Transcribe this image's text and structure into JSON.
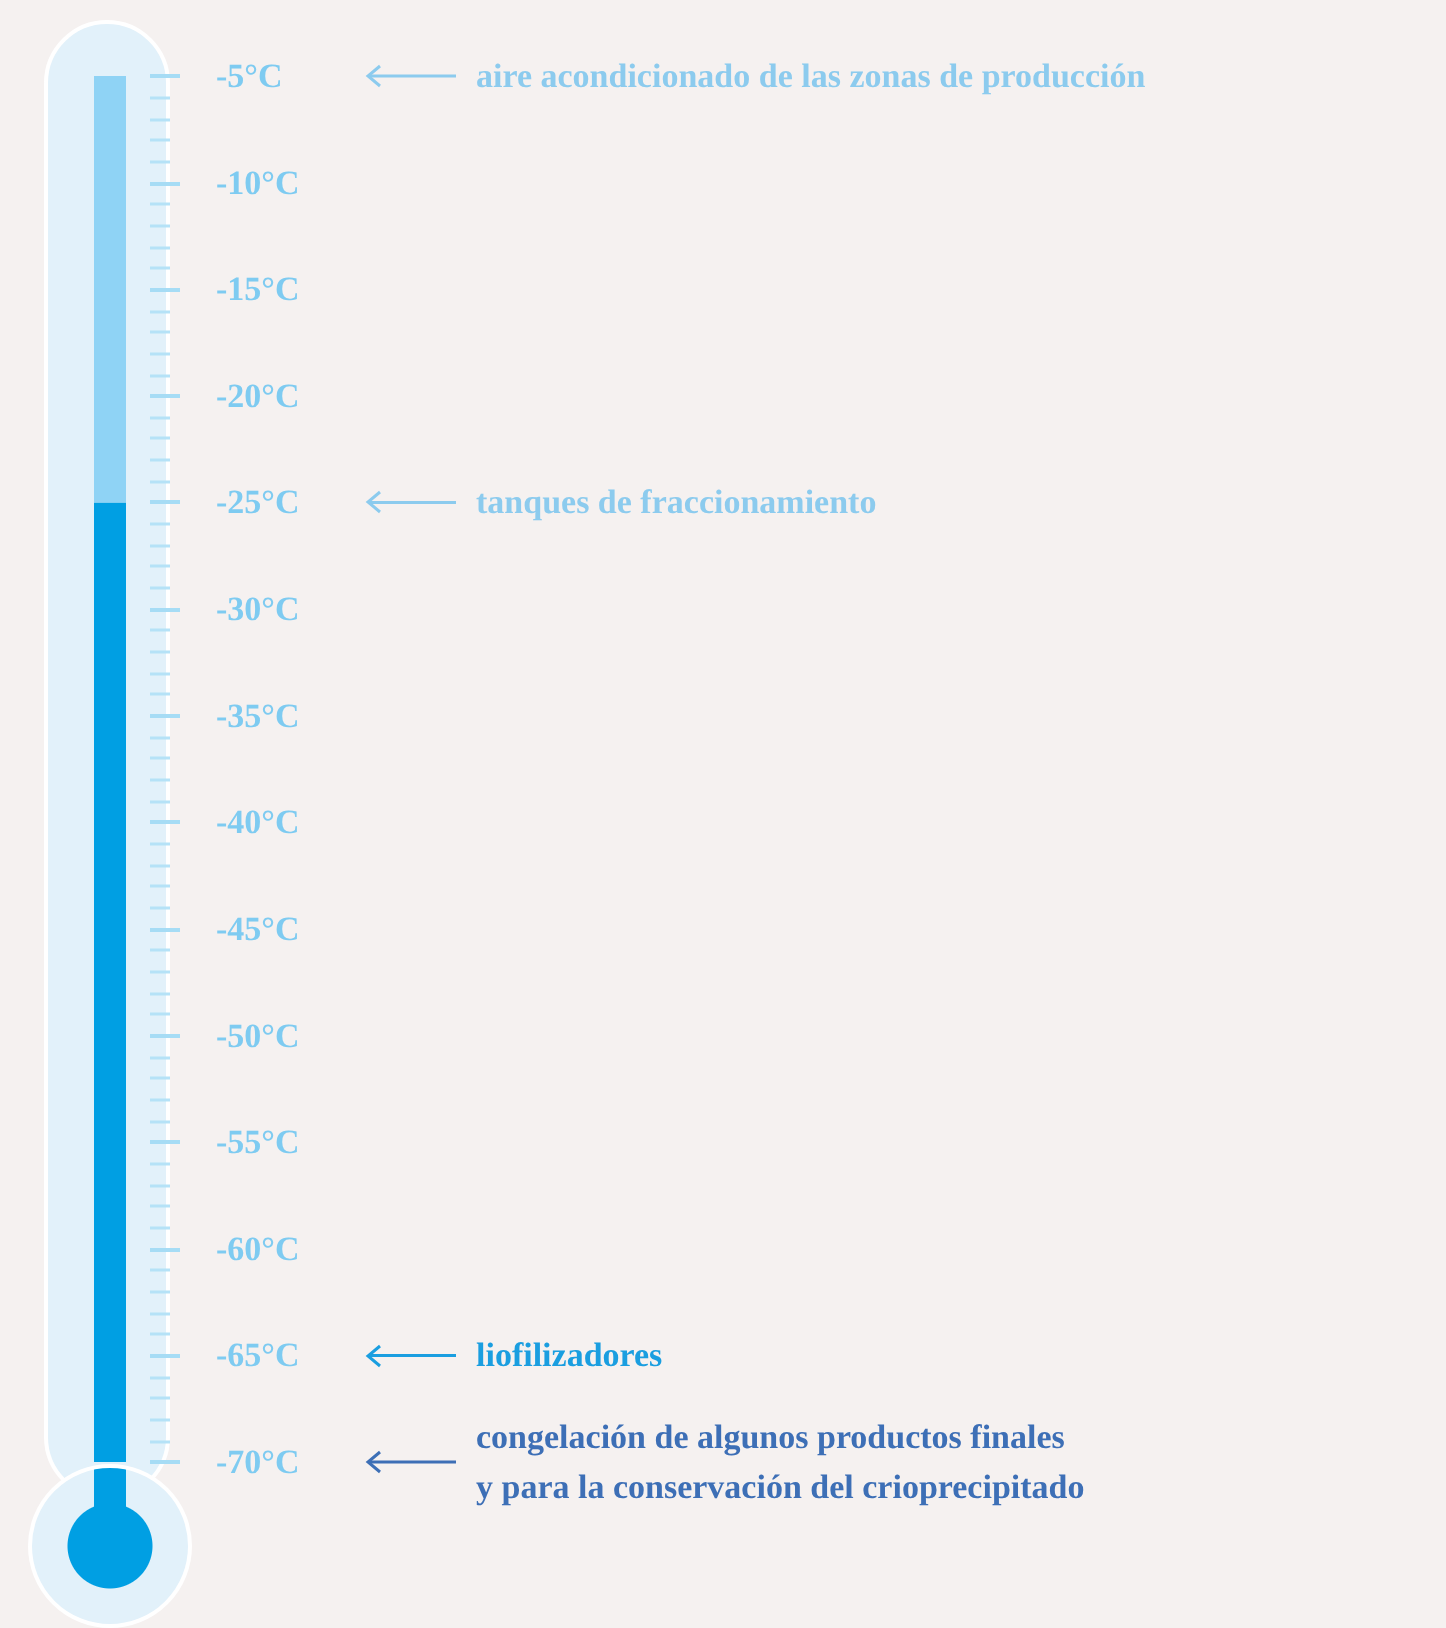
{
  "chart_data": {
    "type": "bar",
    "categories": [
      null
    ],
    "series": [
      {
        "color": "#8fd3f5",
        "values": [
          -25
        ]
      }
    ],
    "ylim": [
      -70,
      -5
    ],
    "yticks": [
      {
        "value": -5,
        "label": "-5°C"
      },
      {
        "value": -10,
        "label": "-10°C"
      },
      {
        "value": -15,
        "label": "-15°C"
      },
      {
        "value": -20,
        "label": "-20°C"
      },
      {
        "value": -25,
        "label": "-25°C"
      },
      {
        "value": -30,
        "label": "-30°C"
      },
      {
        "value": -35,
        "label": "-35°C"
      },
      {
        "value": -40,
        "label": "-40°C"
      },
      {
        "value": -45,
        "label": "-45°C"
      },
      {
        "value": -50,
        "label": "-50°C"
      },
      {
        "value": -55,
        "label": "-55°C"
      },
      {
        "value": -60,
        "label": "-60°C"
      },
      {
        "value": -65,
        "label": "-65°C"
      },
      {
        "value": -70,
        "label": "-70°C"
      }
    ],
    "bands": [
      {
        "axis": "y",
        "from": -70,
        "to": -25,
        "color": "#009fe3"
      }
    ],
    "ref_lines": [
      {
        "axis": "y",
        "value": -5,
        "label": "aire acondicionado de las zonas de producción",
        "color": "#8ccbee"
      },
      {
        "axis": "y",
        "value": -25,
        "label": "tanques de fraccionamiento",
        "color": "#8ccbee"
      },
      {
        "axis": "y",
        "value": -65,
        "label": "liofilizadores",
        "color": "#1a9ee0"
      },
      {
        "axis": "y",
        "value": -70,
        "label": "congelación de algunos productos finales\ny para la conservación del crioprecipitado",
        "color": "#3d6fb6"
      }
    ]
  }
}
